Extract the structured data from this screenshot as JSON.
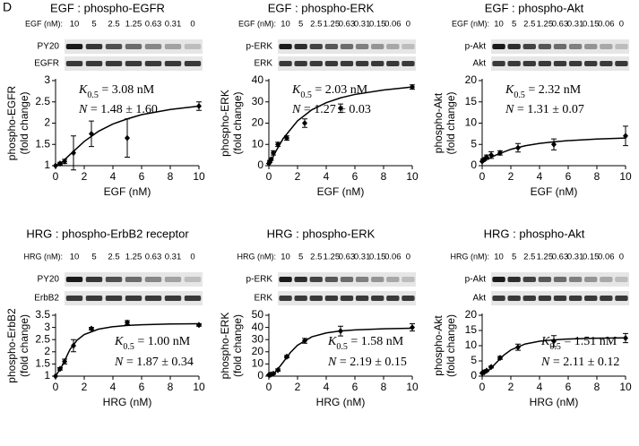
{
  "panel_label": "D",
  "chart_data": [
    {
      "type": "scatter",
      "title": "EGF : phospho-EGFR",
      "blot": {
        "header": "EGF (nM):",
        "lanes": [
          "10",
          "5",
          "2.5",
          "1.25",
          "0.63",
          "0.31",
          "0"
        ],
        "rows": [
          "PY20",
          "EGFR"
        ]
      },
      "xlabel": "EGF (nM)",
      "ylabel": [
        "phospho-EGFR",
        "(fold change)"
      ],
      "annotations": [
        [
          "K",
          "0.5",
          " = 3.08 nM"
        ],
        [
          "N",
          " = 1.48 ± 1.60"
        ]
      ],
      "x": [
        0,
        0.31,
        0.63,
        1.25,
        2.5,
        5,
        10
      ],
      "values": [
        1,
        1.05,
        1.1,
        1.3,
        1.75,
        1.65,
        2.4
      ],
      "errors": [
        0,
        0.03,
        0.05,
        0.4,
        0.3,
        0.45,
        0.1
      ],
      "fit": {
        "x": [
          0,
          0.5,
          1,
          2,
          3,
          4,
          5,
          6,
          8,
          10
        ],
        "values": [
          1,
          1.1,
          1.26,
          1.57,
          1.81,
          1.98,
          2.1,
          2.2,
          2.32,
          2.4
        ]
      },
      "color": "#000000",
      "xlim": [
        0,
        10
      ],
      "xticks": [
        0,
        2,
        4,
        6,
        8,
        10
      ],
      "ylim": [
        1,
        3
      ],
      "yticks": [
        1,
        1.5,
        2,
        2.5,
        3
      ]
    },
    {
      "type": "scatter",
      "title": "EGF : phospho-ERK",
      "blot": {
        "header": "EGF (nM):",
        "lanes": [
          "10",
          "5",
          "2.5",
          "1.25",
          "0.63",
          "0.31",
          "0.15",
          "0.06",
          "0"
        ],
        "rows": [
          "p-ERK",
          "ERK"
        ]
      },
      "xlabel": "EGF (nM)",
      "ylabel": [
        "phospho-ERK",
        "(fold change)"
      ],
      "annotations": [
        [
          "K",
          "0.5",
          " = 2.03 nM"
        ],
        [
          "N",
          " = 1.27 ± 0.03"
        ]
      ],
      "x": [
        0,
        0.06,
        0.15,
        0.31,
        0.63,
        1.25,
        2.5,
        5,
        10
      ],
      "values": [
        1,
        2,
        3,
        6,
        10,
        13,
        20,
        27,
        37
      ],
      "errors": [
        0,
        0.5,
        0.5,
        1,
        1,
        1,
        2,
        2,
        1
      ],
      "fit": {
        "x": [
          0,
          0.2,
          0.5,
          1,
          2,
          3,
          4,
          5,
          6,
          8,
          10
        ],
        "values": [
          1,
          3,
          6.9,
          12.8,
          21.1,
          26.3,
          29.6,
          31.9,
          33.5,
          35.6,
          37
        ]
      },
      "color": "#000000",
      "xlim": [
        0,
        10
      ],
      "xticks": [
        0,
        2,
        4,
        6,
        8,
        10
      ],
      "ylim": [
        0,
        40
      ],
      "yticks": [
        0,
        10,
        20,
        30,
        40
      ]
    },
    {
      "type": "scatter",
      "title": "EGF : phospho-Akt",
      "blot": {
        "header": "EGF (nM):",
        "lanes": [
          "10",
          "5",
          "2.5",
          "1.25",
          "0.63",
          "0.31",
          "0.15",
          "0.06",
          "0"
        ],
        "rows": [
          "p-Akt",
          "Akt"
        ]
      },
      "xlabel": "EGF (nM)",
      "ylabel": [
        "phospho-Akt",
        "(fold change)"
      ],
      "annotations": [
        [
          "K",
          "0.5",
          " = 2.32 nM"
        ],
        [
          "N",
          " = 1.31 ± 0.07"
        ]
      ],
      "x": [
        0,
        0.06,
        0.15,
        0.31,
        0.63,
        1.25,
        2.5,
        5,
        10
      ],
      "values": [
        1,
        1.3,
        1.5,
        2,
        2.5,
        3,
        4.2,
        5,
        7
      ],
      "errors": [
        0,
        0.3,
        0.3,
        0.5,
        0.8,
        0.5,
        1,
        1.3,
        2.3
      ],
      "fit": {
        "x": [
          0,
          0.5,
          1,
          2,
          3,
          4,
          5,
          6,
          8,
          10
        ],
        "values": [
          1,
          1.74,
          2.57,
          3.85,
          4.68,
          5.23,
          5.61,
          5.89,
          6.27,
          6.49
        ]
      },
      "color": "#000000",
      "xlim": [
        0,
        10
      ],
      "xticks": [
        0,
        2,
        4,
        6,
        8,
        10
      ],
      "ylim": [
        0,
        20
      ],
      "yticks": [
        0,
        5,
        10,
        15,
        20
      ]
    },
    {
      "type": "scatter",
      "title": "HRG : phospho-ErbB2 receptor",
      "blot": {
        "header": "HRG (nM):",
        "lanes": [
          "10",
          "5",
          "2.5",
          "1.25",
          "0.63",
          "0.31",
          "0"
        ],
        "rows": [
          "PY20",
          "ErbB2"
        ]
      },
      "xlabel": "HRG (nM)",
      "ylabel": [
        "phospho-ErbB2",
        "(fold change)"
      ],
      "annotations": [
        [
          "K",
          "0.5",
          " = 1.00 nM"
        ],
        [
          "N",
          " = 1.87 ± 0.34"
        ]
      ],
      "x": [
        0,
        0.31,
        0.63,
        1.25,
        2.5,
        5,
        10
      ],
      "values": [
        1,
        1.3,
        1.6,
        2.25,
        2.95,
        3.2,
        3.1
      ],
      "errors": [
        0,
        0.05,
        0.1,
        0.25,
        0.05,
        0.08,
        0.05
      ],
      "fit": {
        "x": [
          0,
          0.5,
          1,
          1.5,
          2,
          3,
          4,
          5,
          6,
          8,
          10
        ],
        "values": [
          1,
          1.47,
          2.09,
          2.48,
          2.71,
          2.93,
          3.03,
          3.08,
          3.11,
          3.14,
          3.15
        ]
      },
      "color": "#000000",
      "xlim": [
        0,
        10
      ],
      "xticks": [
        0,
        2,
        4,
        6,
        8,
        10
      ],
      "ylim": [
        1,
        3.5
      ],
      "yticks": [
        1,
        1.5,
        2,
        2.5,
        3,
        3.5
      ]
    },
    {
      "type": "scatter",
      "title": "HRG : phospho-ERK",
      "blot": {
        "header": "HRG (nM):",
        "lanes": [
          "10",
          "5",
          "2.5",
          "1.25",
          "0.63",
          "0.31",
          "0.15",
          "0.06",
          "0"
        ],
        "rows": [
          "p-ERK",
          "ERK"
        ]
      },
      "xlabel": "HRG (nM)",
      "ylabel": [
        "phospho-ERK",
        "(fold change)"
      ],
      "annotations": [
        [
          "K",
          "0.5",
          " = 1.58 nM"
        ],
        [
          "N",
          " = 2.19 ± 0.15"
        ]
      ],
      "x": [
        0,
        0.06,
        0.15,
        0.31,
        0.63,
        1.25,
        2.5,
        5,
        10
      ],
      "values": [
        1,
        1,
        1.5,
        2,
        5,
        16,
        29,
        37,
        40
      ],
      "errors": [
        0,
        0.3,
        0.3,
        0.5,
        1,
        1,
        2,
        4,
        3
      ],
      "fit": {
        "x": [
          0,
          0.25,
          0.5,
          1,
          1.5,
          2,
          3,
          4,
          5,
          6,
          8,
          10
        ],
        "values": [
          1,
          1.66,
          3.9,
          11.5,
          19.4,
          25.4,
          32.3,
          35.5,
          37.1,
          38,
          38.9,
          39.3
        ]
      },
      "color": "#000000",
      "xlim": [
        0,
        10
      ],
      "xticks": [
        0,
        2,
        4,
        6,
        8,
        10
      ],
      "ylim": [
        0,
        50
      ],
      "yticks": [
        0,
        10,
        20,
        30,
        40,
        50
      ]
    },
    {
      "type": "scatter",
      "title": "HRG : phospho-Akt",
      "blot": {
        "header": "HRG (nM):",
        "lanes": [
          "10",
          "5",
          "2.5",
          "1.25",
          "0.63",
          "0.31",
          "0.15",
          "0.06",
          "0"
        ],
        "rows": [
          "p-Akt",
          "Akt"
        ]
      },
      "xlabel": "HRG (nM)",
      "ylabel": [
        "phospho-Akt",
        "(fold change)"
      ],
      "annotations": [
        [
          "K",
          "0.5",
          " = 1.51 nM"
        ],
        [
          "N",
          " = 2.11 ± 0.12"
        ]
      ],
      "x": [
        0,
        0.06,
        0.15,
        0.31,
        0.63,
        1.25,
        2.5,
        5,
        10
      ],
      "values": [
        1,
        1.2,
        1.3,
        1.8,
        3,
        6,
        9.5,
        11.5,
        12.5
      ],
      "errors": [
        0,
        0.2,
        0.2,
        0.3,
        0.3,
        0.5,
        1,
        1.8,
        1.5
      ],
      "fit": {
        "x": [
          0,
          0.25,
          0.5,
          1,
          1.5,
          2,
          3,
          4,
          5,
          6,
          8,
          10
        ],
        "values": [
          1,
          1.26,
          2.05,
          4.48,
          6.85,
          8.61,
          10.56,
          11.46,
          11.93,
          12.19,
          12.46,
          12.59
        ]
      },
      "color": "#000000",
      "xlim": [
        0,
        10
      ],
      "xticks": [
        0,
        2,
        4,
        6,
        8,
        10
      ],
      "ylim": [
        0,
        20
      ],
      "yticks": [
        0,
        5,
        10,
        15,
        20
      ]
    }
  ]
}
